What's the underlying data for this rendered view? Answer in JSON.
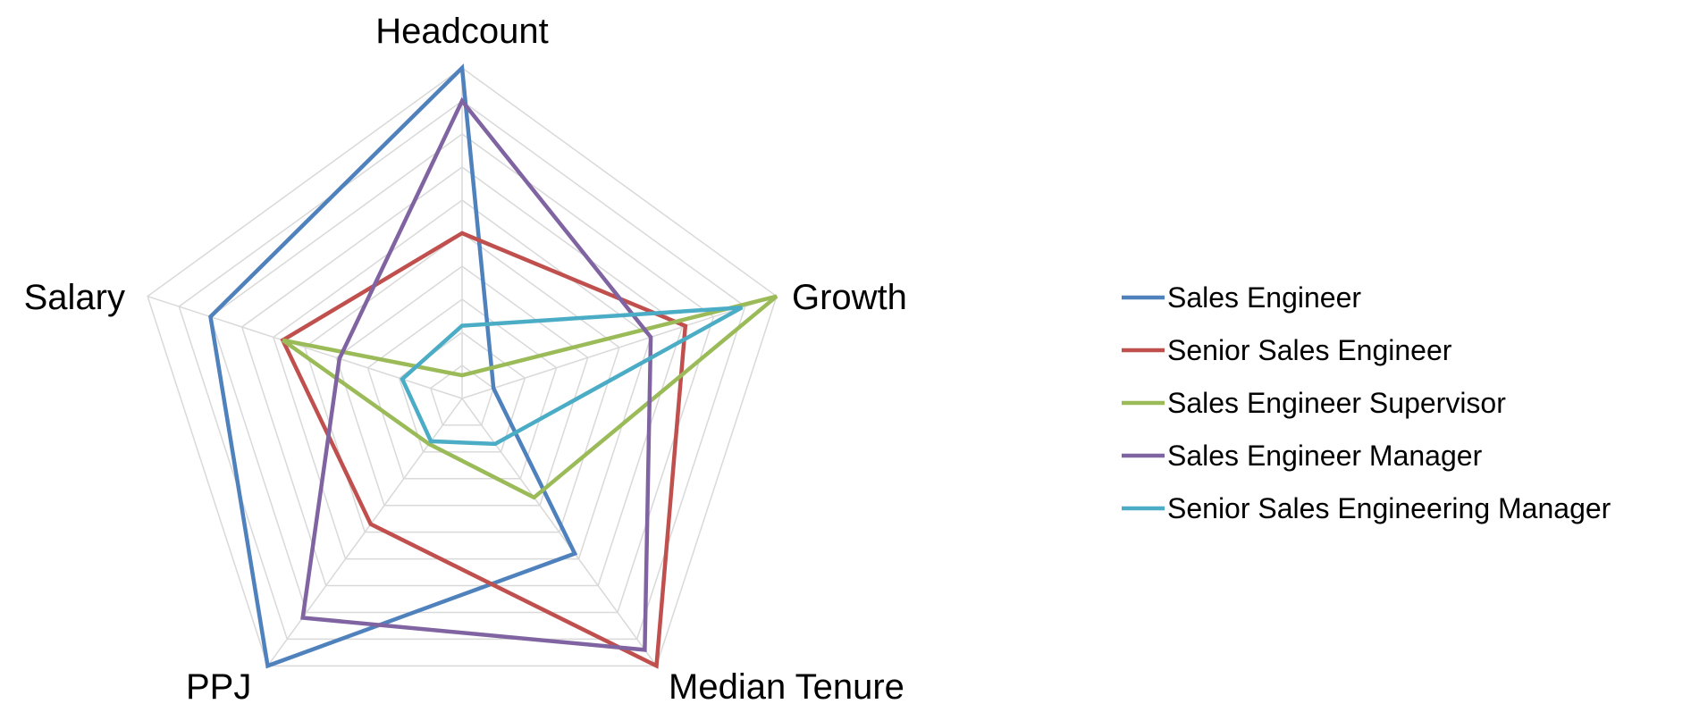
{
  "chart_data": {
    "type": "radar",
    "axes": [
      "Headcount",
      "Growth",
      "Median Tenure",
      "PPJ",
      "Salary"
    ],
    "range": [
      0,
      10
    ],
    "grid_rings": 10,
    "grid": true,
    "legend_position": "right",
    "title": "",
    "series": [
      {
        "name": "Sales Engineer",
        "color": "#4f81bd",
        "values": [
          10,
          1.0,
          5.8,
          10,
          8.0
        ]
      },
      {
        "name": "Senior Sales Engineer",
        "color": "#c0504d",
        "values": [
          5.0,
          7.1,
          10,
          4.7,
          5.7
        ]
      },
      {
        "name": "Sales Engineer Supervisor",
        "color": "#9bbb59",
        "values": [
          0.7,
          10,
          3.7,
          1.7,
          5.7
        ]
      },
      {
        "name": "Sales Engineer Manager",
        "color": "#8064a2",
        "values": [
          9.0,
          6.0,
          9.4,
          8.2,
          3.9
        ]
      },
      {
        "name": "Senior Sales Engineering Manager",
        "color": "#4bacc6",
        "values": [
          2.2,
          8.9,
          1.7,
          1.6,
          1.9
        ]
      }
    ]
  }
}
